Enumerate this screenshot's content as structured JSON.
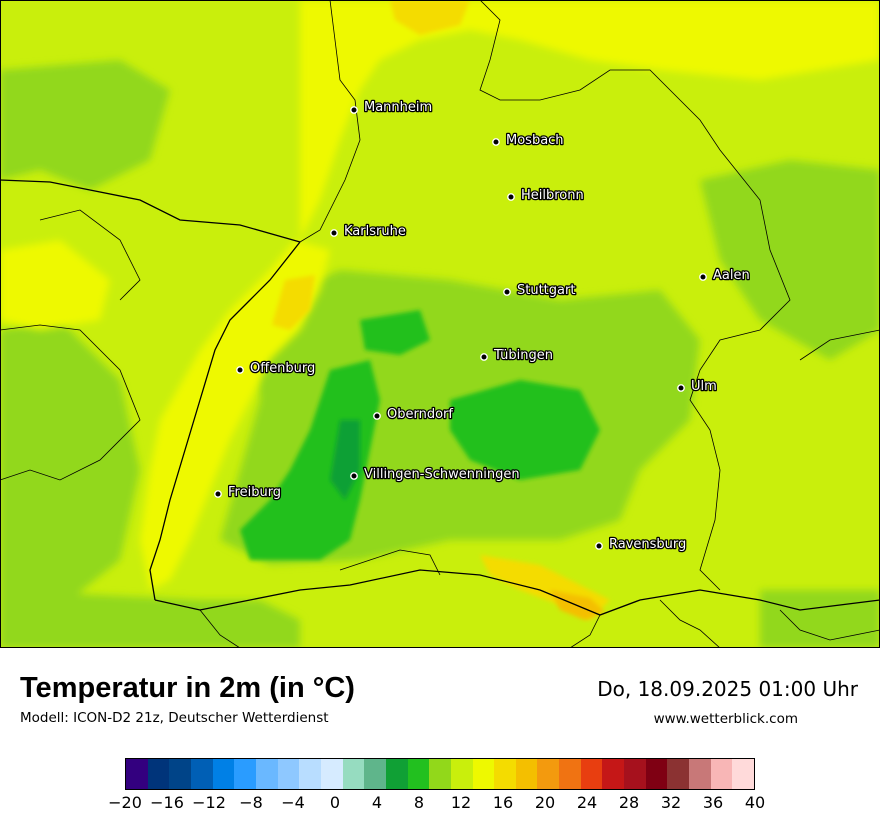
{
  "title": "Temperatur in 2m (in °C)",
  "subtitle": "Modell: ICON-D2 21z, Deutscher Wetterdienst",
  "datetime": "Do, 18.09.2025 01:00 Uhr",
  "website": "www.wetterblick.com",
  "cities": [
    {
      "name": "Mannheim"
    },
    {
      "name": "Mosbach"
    },
    {
      "name": "Heilbronn"
    },
    {
      "name": "Karlsruhe"
    },
    {
      "name": "Aalen"
    },
    {
      "name": "Stuttgart"
    },
    {
      "name": "Tübingen"
    },
    {
      "name": "Offenburg"
    },
    {
      "name": "Ulm"
    },
    {
      "name": "Oberndorf"
    },
    {
      "name": "Villingen-Schwenningen"
    },
    {
      "name": "Freiburg"
    },
    {
      "name": "Ravensburg"
    }
  ],
  "legend": {
    "colors": [
      "#33007f",
      "#00347a",
      "#004488",
      "#005fb5",
      "#0080e6",
      "#2a9cff",
      "#6ab8ff",
      "#8ec8ff",
      "#b8ddff",
      "#d6ebff",
      "#96dcc0",
      "#5fb58b",
      "#10a035",
      "#22c01f",
      "#92d81a",
      "#c9ef0c",
      "#eef900",
      "#f4dc00",
      "#f4bf00",
      "#f39a0e",
      "#f07312",
      "#e83e10",
      "#c51717",
      "#a6111d",
      "#7f0013",
      "#8b3232",
      "#c87878",
      "#f8b6b6",
      "#ffdada"
    ],
    "tick_labels": [
      "−20",
      "−16",
      "−12",
      "−8",
      "−4",
      "0",
      "4",
      "8",
      "12",
      "16",
      "20",
      "24",
      "28",
      "32",
      "36",
      "40"
    ]
  }
}
